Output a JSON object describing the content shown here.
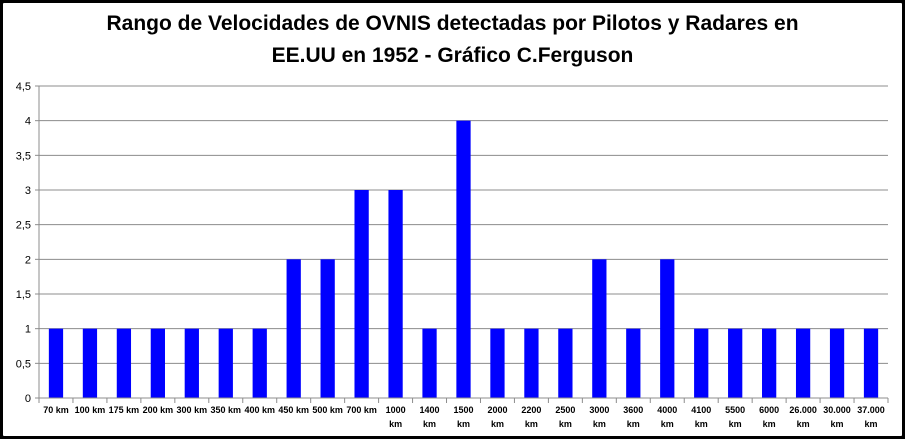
{
  "chart_data": {
    "type": "bar",
    "title_line1": "Rango de Velocidades de OVNIS detectadas por Pilotos y Radares en",
    "title_line2": "EE.UU en 1952 - Gráfico C.Ferguson",
    "xlabel": "",
    "ylabel": "",
    "ylim": [
      0,
      4.5
    ],
    "yticks": [
      "0",
      "0,5",
      "1",
      "1,5",
      "2",
      "2,5",
      "3",
      "3,5",
      "4",
      "4,5"
    ],
    "grid": true,
    "legend": "none",
    "bar_color": "#0000FF",
    "categories": [
      [
        "70 km"
      ],
      [
        "100 km"
      ],
      [
        "175 km"
      ],
      [
        "200 km"
      ],
      [
        "300 km"
      ],
      [
        "350 km"
      ],
      [
        "400 km"
      ],
      [
        "450 km"
      ],
      [
        "500 km"
      ],
      [
        "700 km"
      ],
      [
        "1000",
        "km"
      ],
      [
        "1400",
        "km"
      ],
      [
        "1500",
        "km"
      ],
      [
        "2000",
        "km"
      ],
      [
        "2200",
        "km"
      ],
      [
        "2500",
        "km"
      ],
      [
        "3000",
        "km"
      ],
      [
        "3600",
        "km"
      ],
      [
        "4000",
        "km"
      ],
      [
        "4100",
        "km"
      ],
      [
        "5500",
        "km"
      ],
      [
        "6000",
        "km"
      ],
      [
        "26.000",
        "km"
      ],
      [
        "30.000",
        "km"
      ],
      [
        "37.000",
        "km"
      ]
    ],
    "values": [
      1,
      1,
      1,
      1,
      1,
      1,
      1,
      2,
      2,
      3,
      3,
      1,
      4,
      1,
      1,
      1,
      2,
      1,
      2,
      1,
      1,
      1,
      1,
      1,
      1
    ]
  }
}
